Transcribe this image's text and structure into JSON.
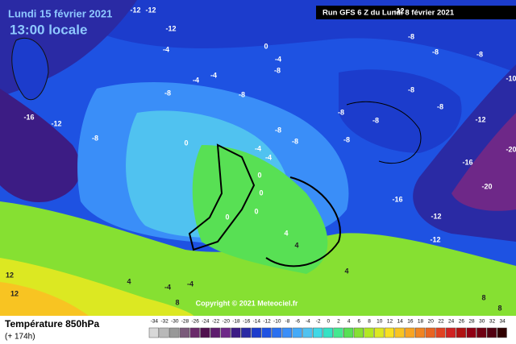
{
  "header": {
    "date": "Lundi 15 février 2021",
    "time": "13:00 locale",
    "run": "Run GFS 6 Z du Lundi 8 février 2021"
  },
  "map": {
    "labels": [
      "-12",
      "-12",
      "-12",
      "-8",
      "-4",
      "0",
      "-4",
      "-8",
      "-12",
      "-4",
      "-4",
      "-8",
      "-8",
      "-8",
      "-8",
      "-10",
      "-16",
      "-12",
      "-8",
      "0",
      "-4",
      "-8",
      "-4",
      "-8",
      "-8",
      "-8",
      "-8",
      "-8",
      "-8",
      "-12",
      "-16",
      "-20",
      "-20",
      "-16",
      "-12",
      "-12",
      "0",
      "0",
      "0",
      "0",
      "4",
      "4",
      "4",
      "-4",
      "-4",
      "4",
      "12",
      "12",
      "8",
      "8",
      "8"
    ],
    "copyright": "Copyright © 2021 Meteociel.fr"
  },
  "footer": {
    "title": "Température 850hPa",
    "lead": "(+ 174h)"
  },
  "legend": {
    "values": [
      -34,
      -32,
      -30,
      -28,
      -26,
      -24,
      -22,
      -20,
      -18,
      -16,
      -14,
      -12,
      -10,
      -8,
      -6,
      -4,
      -2,
      0,
      2,
      4,
      6,
      8,
      10,
      12,
      14,
      16,
      18,
      20,
      22,
      24,
      26,
      28,
      30,
      32,
      34
    ],
    "colors": [
      "#d8d8d8",
      "#b8b8b8",
      "#989898",
      "#7a5a7a",
      "#6a2a6a",
      "#50104e",
      "#5e1c6e",
      "#6e2888",
      "#3c1c84",
      "#2a2aa4",
      "#1c3ccc",
      "#1e52e2",
      "#2a70f0",
      "#3a8ef8",
      "#44aaf8",
      "#50c2f0",
      "#40d8e6",
      "#34e2c4",
      "#44e890",
      "#58e054",
      "#86e032",
      "#b2e822",
      "#dce822",
      "#f8e022",
      "#f8c422",
      "#f8a422",
      "#f08422",
      "#e86422",
      "#e04222",
      "#d02222",
      "#b01212",
      "#900014",
      "#700012",
      "#520010",
      "#300000"
    ]
  }
}
